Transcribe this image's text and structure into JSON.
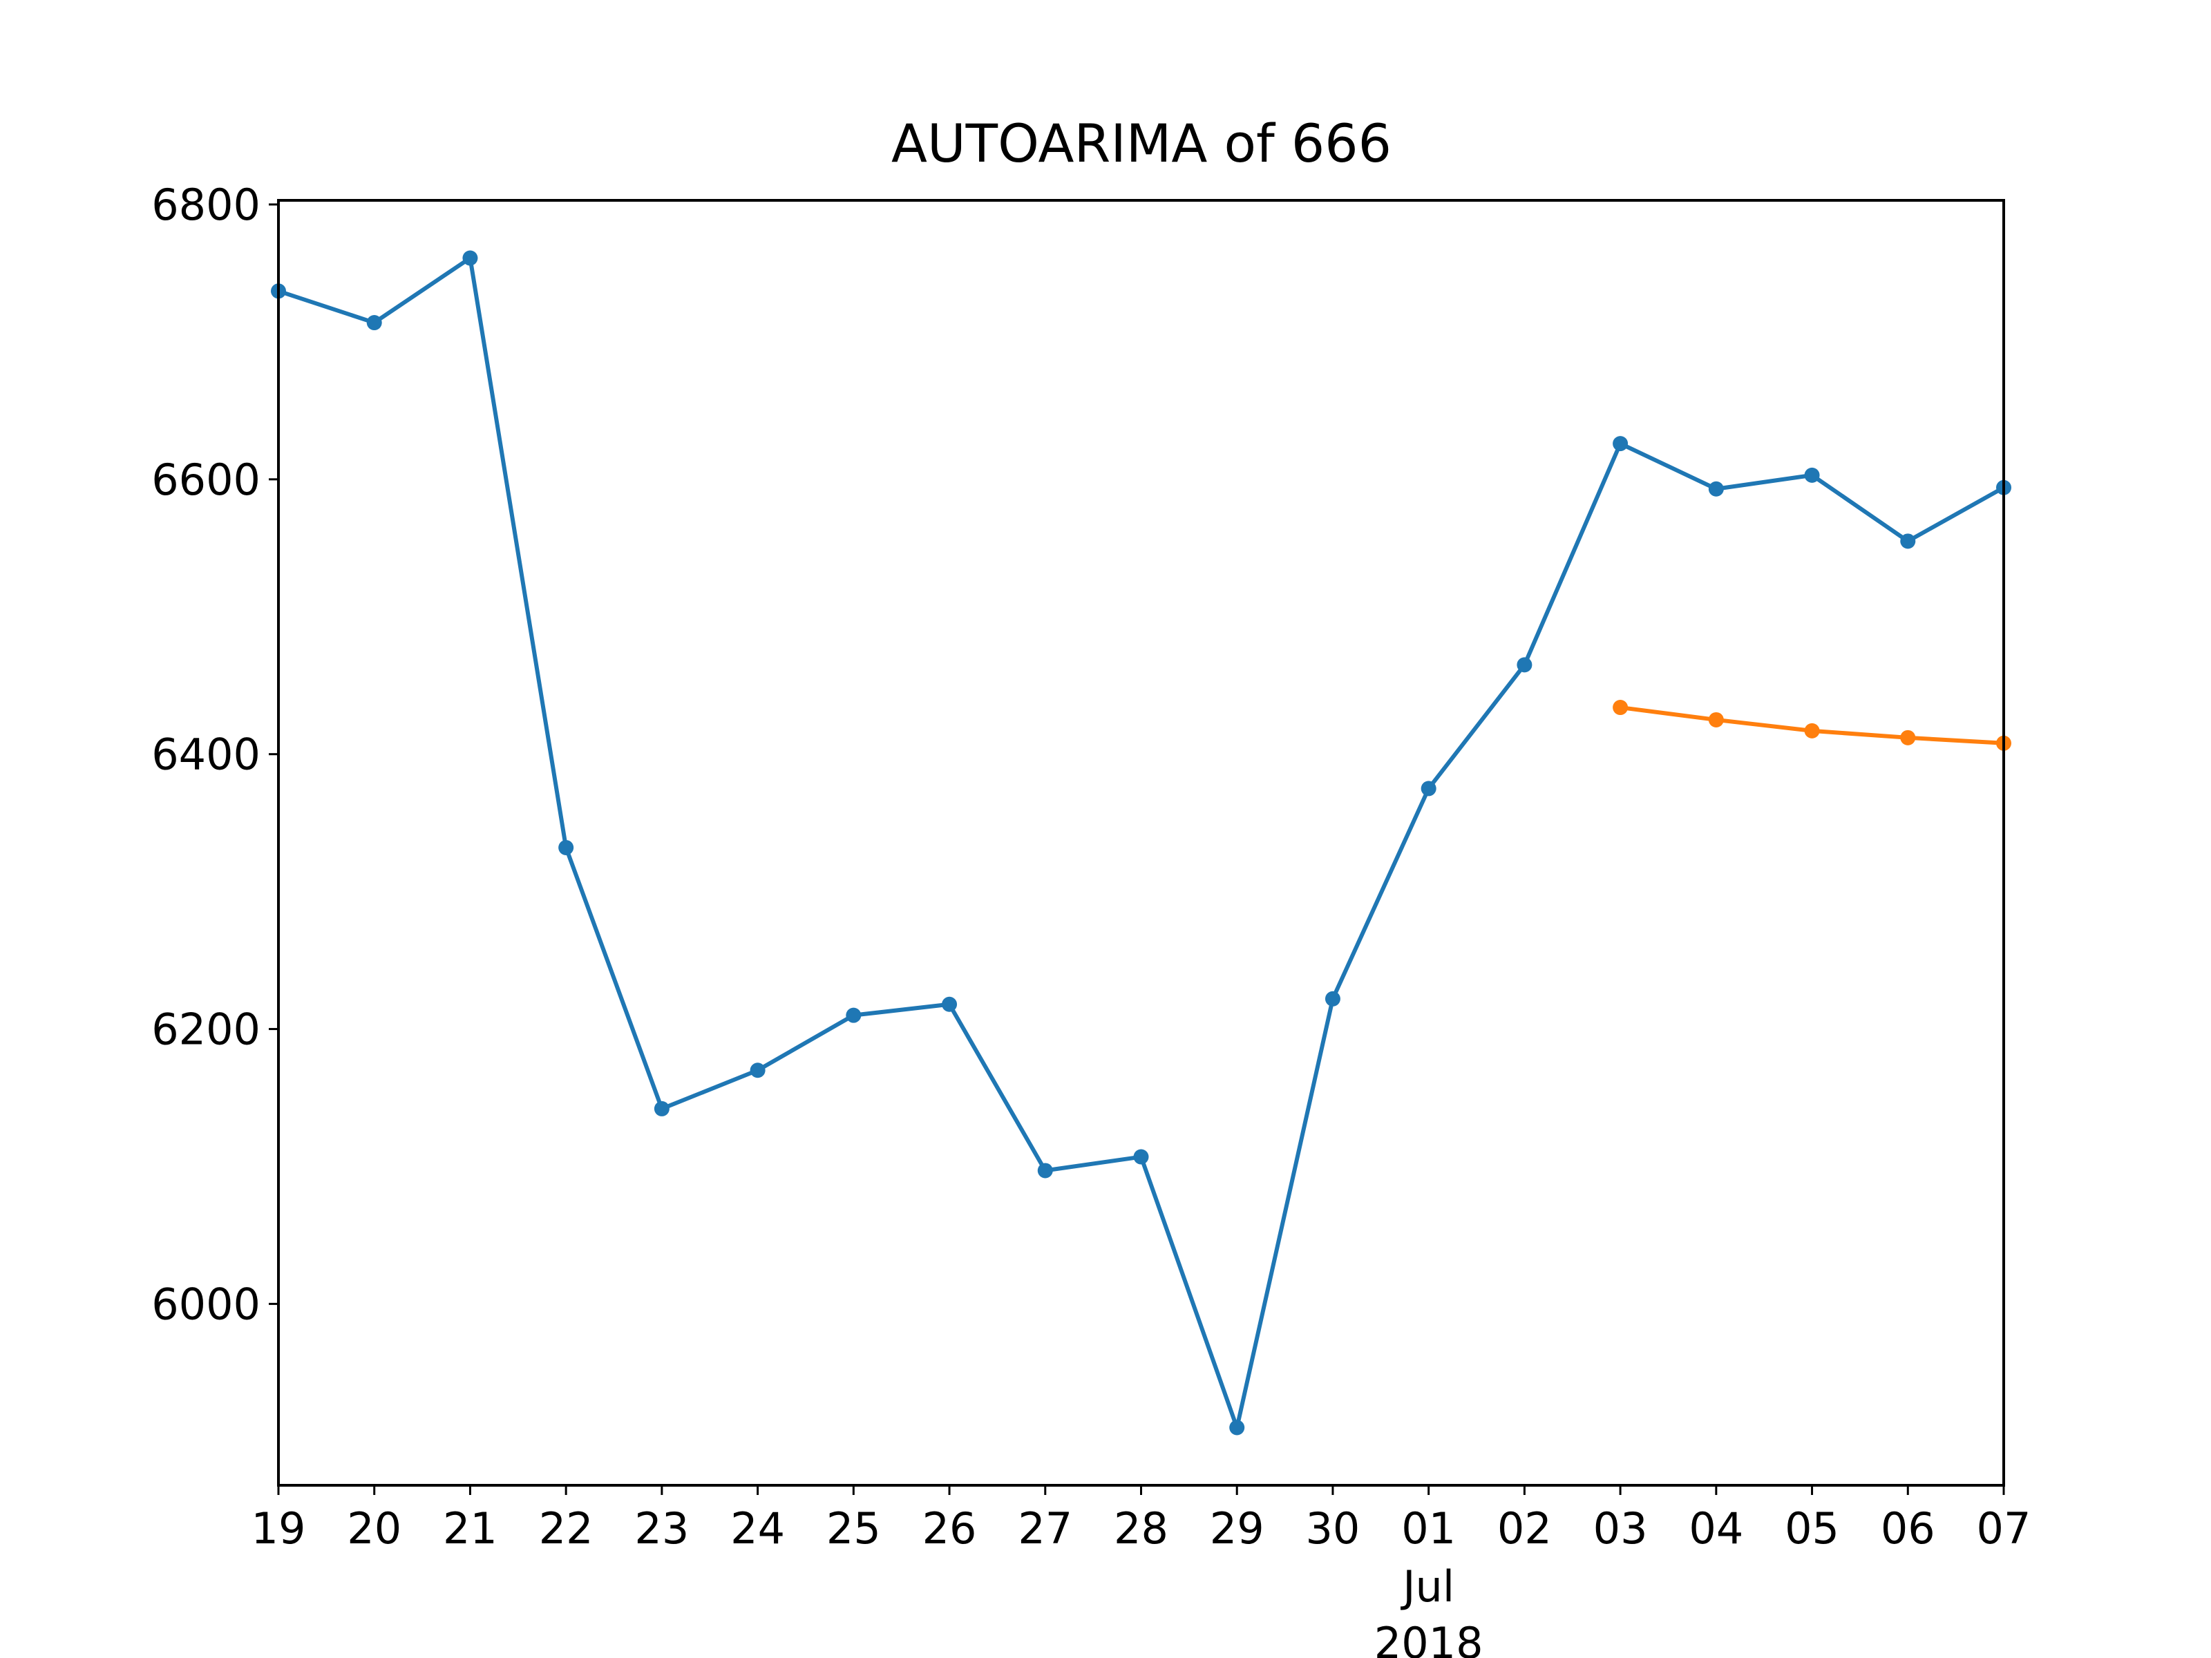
{
  "chart_data": {
    "type": "line",
    "title": "AUTOARIMA of 666",
    "xlabel": "",
    "ylabel": "",
    "x_ticks": [
      "19",
      "20",
      "21",
      "22",
      "23",
      "24",
      "25",
      "26",
      "27",
      "28",
      "29",
      "30",
      "01",
      "02",
      "03",
      "04",
      "05",
      "06",
      "07"
    ],
    "x_month_label": "Jul",
    "x_year_label": "2018",
    "y_ticks": [
      "6000",
      "6200",
      "6400",
      "6600",
      "6800"
    ],
    "ylim": [
      5868,
      6803
    ],
    "grid": false,
    "legend": false,
    "series": [
      {
        "color": "#1f77b4",
        "x": [
          "2018-06-19",
          "2018-06-20",
          "2018-06-21",
          "2018-06-22",
          "2018-06-23",
          "2018-06-24",
          "2018-06-25",
          "2018-06-26",
          "2018-06-27",
          "2018-06-28",
          "2018-06-29",
          "2018-06-30",
          "2018-07-01",
          "2018-07-02",
          "2018-07-03",
          "2018-07-04",
          "2018-07-05",
          "2018-07-06",
          "2018-07-07"
        ],
        "values": [
          6737,
          6714,
          6761,
          6332,
          6142,
          6170,
          6210,
          6218,
          6097,
          6107,
          5910,
          6222,
          6375,
          6465,
          6626,
          6593,
          6603,
          6555,
          6594
        ]
      },
      {
        "color": "#ff7f0e",
        "x": [
          "2018-07-03",
          "2018-07-04",
          "2018-07-05",
          "2018-07-06",
          "2018-07-07"
        ],
        "values": [
          6434,
          6425,
          6417,
          6412,
          6408
        ]
      }
    ]
  }
}
